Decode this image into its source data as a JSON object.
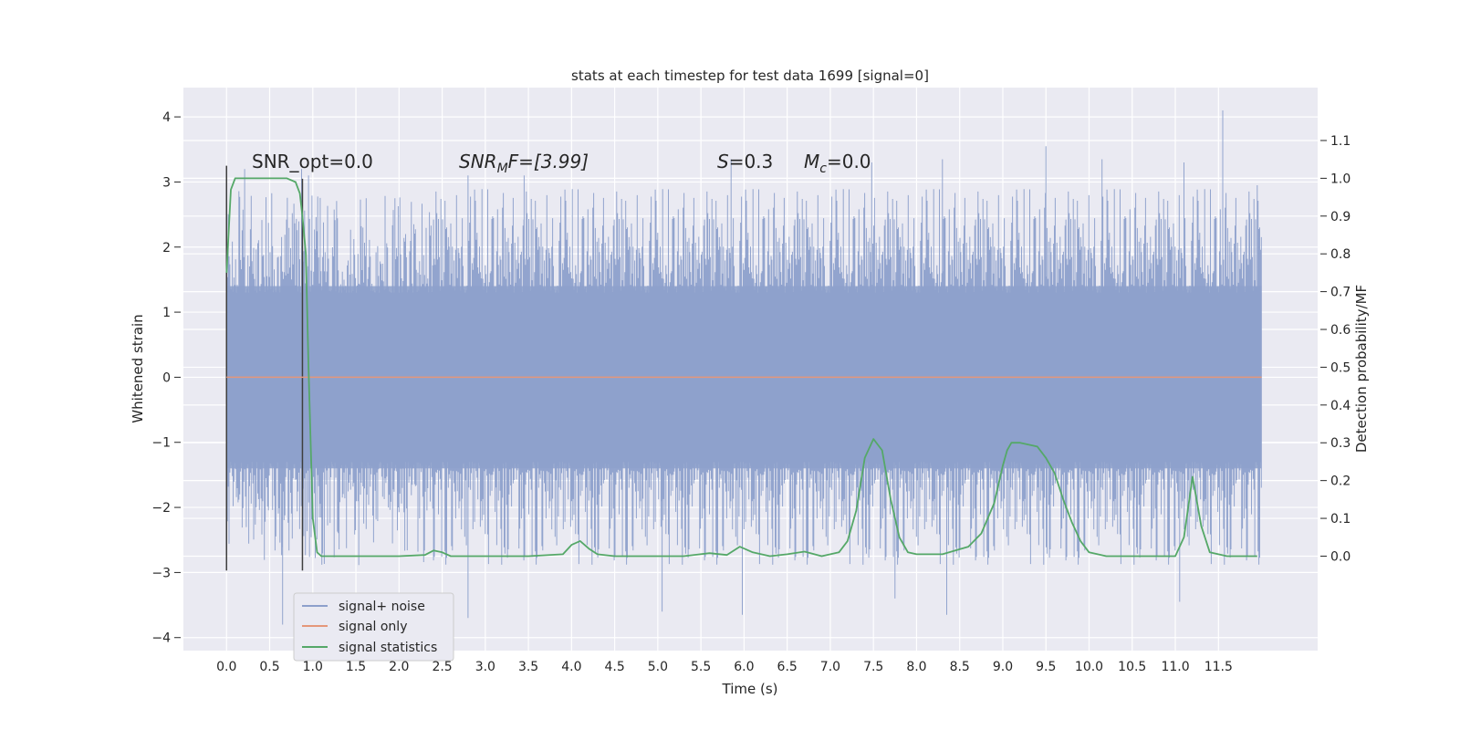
{
  "chart_data": {
    "type": "line",
    "title": "stats at each timestep for test data 1699 [signal=0]",
    "xlabel": "Time (s)",
    "ylabel": "Whitened strain",
    "y2label": "Detection probability/MF",
    "xlim": [
      -0.5,
      12.65
    ],
    "ylim": [
      -4.2,
      4.45
    ],
    "y2lim": [
      -0.25,
      1.24
    ],
    "x_ticks": [
      0.0,
      0.5,
      1.0,
      1.5,
      2.0,
      2.5,
      3.0,
      3.5,
      4.0,
      4.5,
      5.0,
      5.5,
      6.0,
      6.5,
      7.0,
      7.5,
      8.0,
      8.5,
      9.0,
      9.5,
      10.0,
      10.5,
      11.0,
      11.5
    ],
    "x_tick_labels": [
      "0.0",
      "0.5",
      "1.0",
      "1.5",
      "2.0",
      "2.5",
      "3.0",
      "3.5",
      "4.0",
      "4.5",
      "5.0",
      "5.5",
      "6.0",
      "6.5",
      "7.0",
      "7.5",
      "8.0",
      "8.5",
      "9.0",
      "9.5",
      "10.0",
      "10.5",
      "11.0",
      "11.5"
    ],
    "y_ticks": [
      -4,
      -3,
      -2,
      -1,
      0,
      1,
      2,
      3,
      4
    ],
    "y_tick_labels": [
      "−4",
      "−3",
      "−2",
      "−1",
      "0",
      "1",
      "2",
      "3",
      "4"
    ],
    "y2_ticks": [
      0.0,
      0.1,
      0.2,
      0.3,
      0.4,
      0.5,
      0.6,
      0.7,
      0.8,
      0.9,
      1.0,
      1.1
    ],
    "y2_tick_labels": [
      "0.0",
      "0.1",
      "0.2",
      "0.3",
      "0.4",
      "0.5",
      "0.6",
      "0.7",
      "0.8",
      "0.9",
      "1.0",
      "1.1"
    ],
    "grid": true,
    "legend_position": "bottom-left",
    "annotations": {
      "snr_opt": "SNR_opt=0.0",
      "snr_mf_main": "SNR",
      "snr_mf_sub": "M",
      "snr_mf_rest": "F=[3.99]",
      "s_var": "S",
      "s_rest": "=0.3",
      "mc_var": "M",
      "mc_sub": "c",
      "mc_rest": "=0.0"
    },
    "series": [
      {
        "name": "signal+ noise",
        "color": "#8da0cb",
        "x_range": [
          0.0,
          12.0
        ],
        "band": {
          "low": -1.4,
          "high": 1.4
        },
        "peaks": [
          {
            "x": 0.21,
            "y": 3.2
          },
          {
            "x": 0.87,
            "y": 3.2
          },
          {
            "x": 0.95,
            "y": 3.1
          },
          {
            "x": 2.8,
            "y": 3.1
          },
          {
            "x": 3.45,
            "y": 3.1
          },
          {
            "x": 5.85,
            "y": 3.35
          },
          {
            "x": 7.48,
            "y": 3.3
          },
          {
            "x": 8.3,
            "y": 3.35
          },
          {
            "x": 9.5,
            "y": 3.55
          },
          {
            "x": 10.15,
            "y": 3.35
          },
          {
            "x": 11.1,
            "y": 3.3
          },
          {
            "x": 11.55,
            "y": 4.1
          },
          {
            "x": 11.95,
            "y": 2.95
          }
        ],
        "troughs": [
          {
            "x": 0.65,
            "y": -3.8
          },
          {
            "x": 2.8,
            "y": -3.7
          },
          {
            "x": 5.05,
            "y": -3.6
          },
          {
            "x": 5.98,
            "y": -3.65
          },
          {
            "x": 7.75,
            "y": -3.4
          },
          {
            "x": 8.35,
            "y": -3.65
          },
          {
            "x": 11.05,
            "y": -3.45
          }
        ]
      },
      {
        "name": "signal only",
        "color": "#e5977a",
        "x": [
          0.0,
          12.0
        ],
        "y": [
          0.0,
          0.0
        ]
      },
      {
        "name": "signal statistics",
        "color": "#55a868",
        "axis": "right",
        "x": [
          0.0,
          0.05,
          0.1,
          0.2,
          0.3,
          0.5,
          0.7,
          0.8,
          0.85,
          0.88,
          0.92,
          0.95,
          1.0,
          1.05,
          1.1,
          1.2,
          1.5,
          2.0,
          2.3,
          2.4,
          2.5,
          2.6,
          2.8,
          3.0,
          3.5,
          3.9,
          4.0,
          4.1,
          4.2,
          4.3,
          4.5,
          5.0,
          5.3,
          5.6,
          5.8,
          5.95,
          6.1,
          6.3,
          6.5,
          6.7,
          6.9,
          7.1,
          7.2,
          7.3,
          7.4,
          7.5,
          7.6,
          7.7,
          7.8,
          7.9,
          8.0,
          8.3,
          8.6,
          8.75,
          8.9,
          9.0,
          9.05,
          9.1,
          9.2,
          9.4,
          9.5,
          9.6,
          9.7,
          9.8,
          9.9,
          10.0,
          10.2,
          10.5,
          10.9,
          11.0,
          11.1,
          11.2,
          11.3,
          11.4,
          11.6,
          11.95
        ],
        "y": [
          0.75,
          0.97,
          1.0,
          1.0,
          1.0,
          1.0,
          1.0,
          0.99,
          0.96,
          0.9,
          0.8,
          0.5,
          0.1,
          0.01,
          0.0,
          0.0,
          0.0,
          0.0,
          0.003,
          0.015,
          0.01,
          0.0,
          0.0,
          0.0,
          0.0,
          0.005,
          0.03,
          0.04,
          0.02,
          0.005,
          0.0,
          0.0,
          0.0,
          0.008,
          0.003,
          0.025,
          0.01,
          0.0,
          0.005,
          0.012,
          0.0,
          0.01,
          0.04,
          0.12,
          0.26,
          0.31,
          0.28,
          0.15,
          0.05,
          0.01,
          0.005,
          0.005,
          0.025,
          0.06,
          0.14,
          0.24,
          0.28,
          0.3,
          0.3,
          0.29,
          0.26,
          0.22,
          0.15,
          0.09,
          0.04,
          0.01,
          0.0,
          0.0,
          0.0,
          0.0,
          0.05,
          0.21,
          0.08,
          0.01,
          0.0,
          0.0
        ]
      }
    ],
    "vertical_lines": [
      {
        "x": 0.0,
        "y_from": -2.97,
        "y_to": 3.25,
        "color": "#3f3f3f"
      },
      {
        "x": 0.88,
        "y_from": -2.97,
        "y_to": 3.05,
        "color": "#3f3f3f"
      }
    ]
  }
}
